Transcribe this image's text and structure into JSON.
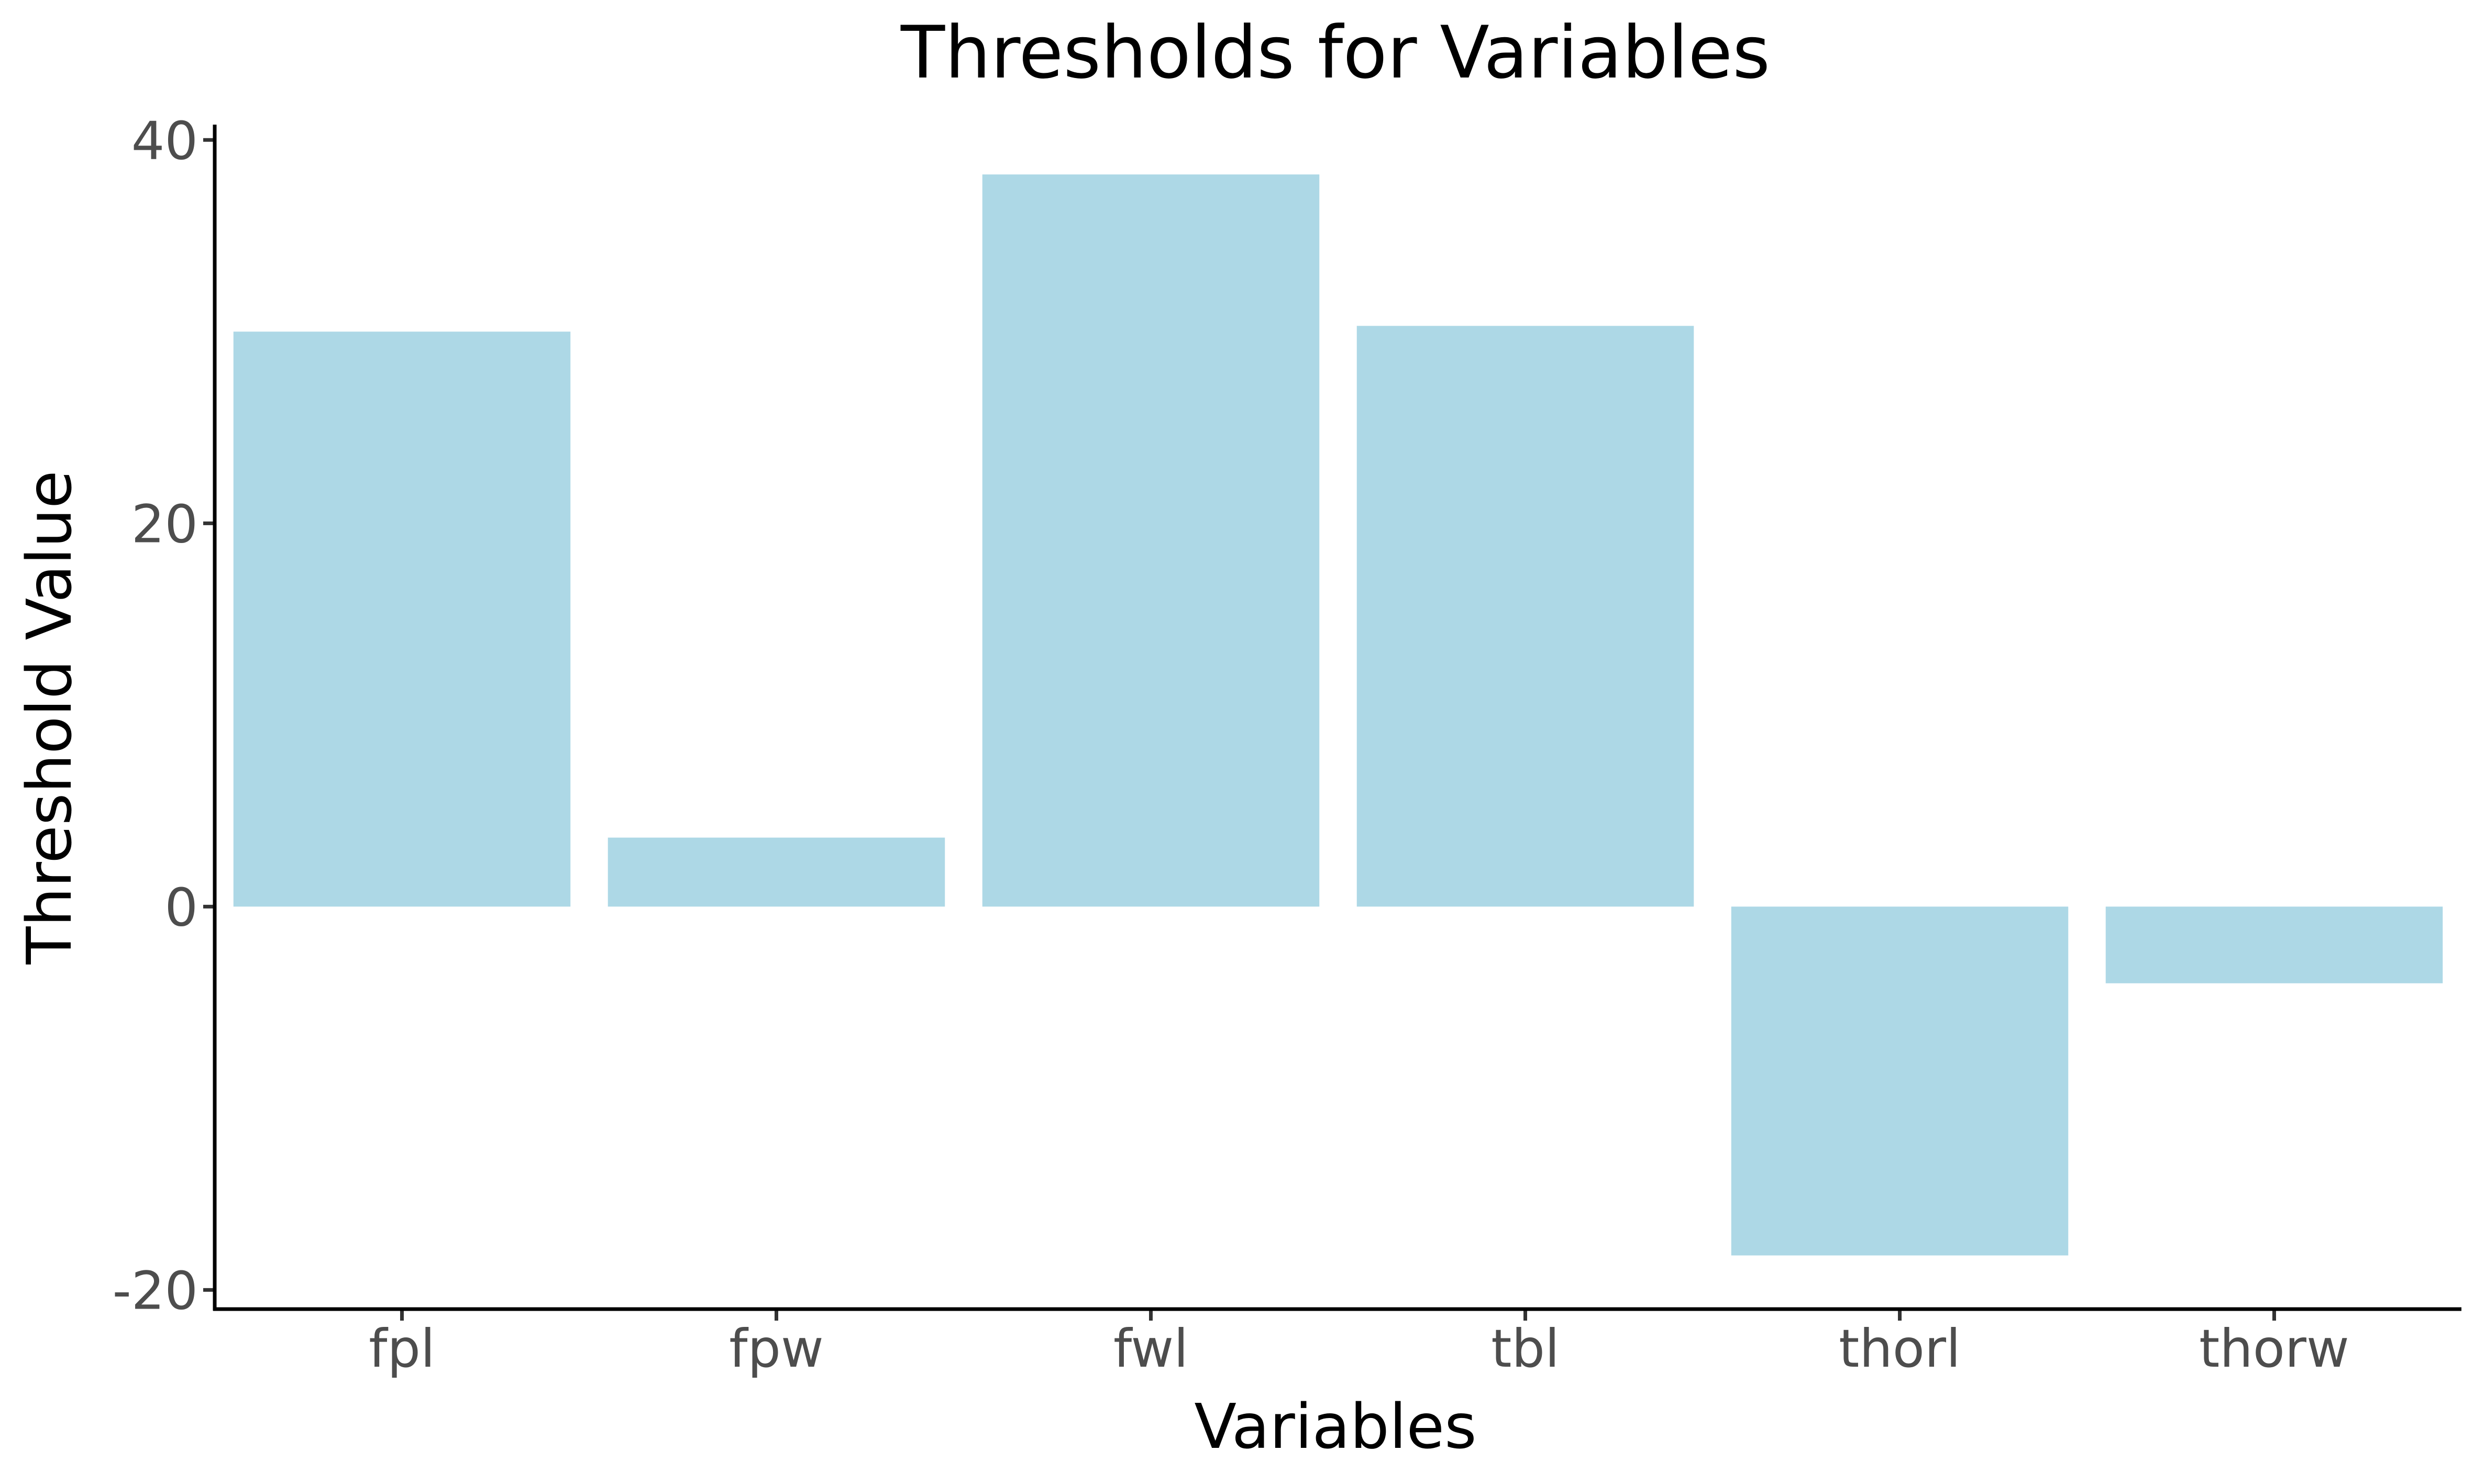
{
  "chart_data": {
    "type": "bar",
    "title": "Thresholds for Variables",
    "xlabel": "Variables",
    "ylabel": "Threshold Value",
    "categories": [
      "fpl",
      "fpw",
      "fwl",
      "tbl",
      "thorl",
      "thorw"
    ],
    "values": [
      30.0,
      3.6,
      38.2,
      30.3,
      -18.2,
      -4.0
    ],
    "ylim": [
      -21,
      40.8
    ],
    "yticks": [
      -20,
      0,
      20,
      40
    ],
    "ytick_labels": [
      "-20",
      "0",
      "20",
      "40"
    ],
    "bar_color": "#add8e6",
    "grid": false,
    "legend": "none"
  }
}
